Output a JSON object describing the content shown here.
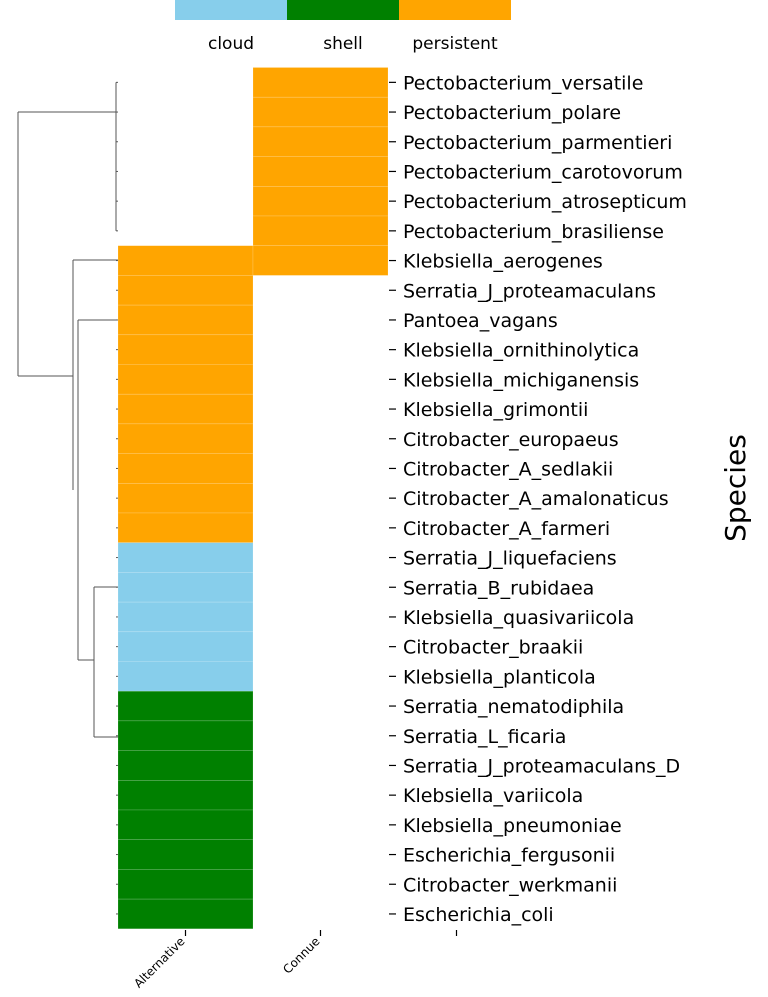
{
  "chart_data": {
    "type": "heatmap",
    "title": "",
    "ylabel": "Species",
    "legend": {
      "placement": "top",
      "entries": [
        {
          "label": "cloud",
          "color": "#87CEEB"
        },
        {
          "label": "shell",
          "color": "#008000"
        },
        {
          "label": "persistent",
          "color": "#FFA500"
        }
      ]
    },
    "columns": [
      "Alternative",
      "Connue",
      ""
    ],
    "rows": [
      {
        "species": "Pectobacterium_versatile",
        "cells": [
          null,
          "persistent",
          null
        ]
      },
      {
        "species": "Pectobacterium_polare",
        "cells": [
          null,
          "persistent",
          null
        ]
      },
      {
        "species": "Pectobacterium_parmentieri",
        "cells": [
          null,
          "persistent",
          null
        ]
      },
      {
        "species": "Pectobacterium_carotovorum",
        "cells": [
          null,
          "persistent",
          null
        ]
      },
      {
        "species": "Pectobacterium_atrosepticum",
        "cells": [
          null,
          "persistent",
          null
        ]
      },
      {
        "species": "Pectobacterium_brasiliense",
        "cells": [
          null,
          "persistent",
          null
        ]
      },
      {
        "species": "Klebsiella_aerogenes",
        "cells": [
          "persistent",
          "persistent",
          null
        ]
      },
      {
        "species": "Serratia_J_proteamaculans",
        "cells": [
          "persistent",
          null,
          null
        ]
      },
      {
        "species": "Pantoea_vagans",
        "cells": [
          "persistent",
          null,
          null
        ]
      },
      {
        "species": "Klebsiella_ornithinolytica",
        "cells": [
          "persistent",
          null,
          null
        ]
      },
      {
        "species": "Klebsiella_michiganensis",
        "cells": [
          "persistent",
          null,
          null
        ]
      },
      {
        "species": "Klebsiella_grimontii",
        "cells": [
          "persistent",
          null,
          null
        ]
      },
      {
        "species": "Citrobacter_europaeus",
        "cells": [
          "persistent",
          null,
          null
        ]
      },
      {
        "species": "Citrobacter_A_sedlakii",
        "cells": [
          "persistent",
          null,
          null
        ]
      },
      {
        "species": "Citrobacter_A_amalonaticus",
        "cells": [
          "persistent",
          null,
          null
        ]
      },
      {
        "species": "Citrobacter_A_farmeri",
        "cells": [
          "persistent",
          null,
          null
        ]
      },
      {
        "species": "Serratia_J_liquefaciens",
        "cells": [
          "cloud",
          null,
          null
        ]
      },
      {
        "species": "Serratia_B_rubidaea",
        "cells": [
          "cloud",
          null,
          null
        ]
      },
      {
        "species": "Klebsiella_quasivariicola",
        "cells": [
          "cloud",
          null,
          null
        ]
      },
      {
        "species": "Citrobacter_braakii",
        "cells": [
          "cloud",
          null,
          null
        ]
      },
      {
        "species": "Klebsiella_planticola",
        "cells": [
          "cloud",
          null,
          null
        ]
      },
      {
        "species": "Serratia_nematodiphila",
        "cells": [
          "shell",
          null,
          null
        ]
      },
      {
        "species": "Serratia_L_ficaria",
        "cells": [
          "shell",
          null,
          null
        ]
      },
      {
        "species": "Serratia_J_proteamaculans_D",
        "cells": [
          "shell",
          null,
          null
        ]
      },
      {
        "species": "Klebsiella_variicola",
        "cells": [
          "shell",
          null,
          null
        ]
      },
      {
        "species": "Klebsiella_pneumoniae",
        "cells": [
          "shell",
          null,
          null
        ]
      },
      {
        "species": "Escherichia_fergusonii",
        "cells": [
          "shell",
          null,
          null
        ]
      },
      {
        "species": "Citrobacter_werkmanii",
        "cells": [
          "shell",
          null,
          null
        ]
      },
      {
        "species": "Escherichia_coli",
        "cells": [
          "shell",
          null,
          null
        ]
      }
    ],
    "grid": false,
    "row_dendrogram": true
  }
}
